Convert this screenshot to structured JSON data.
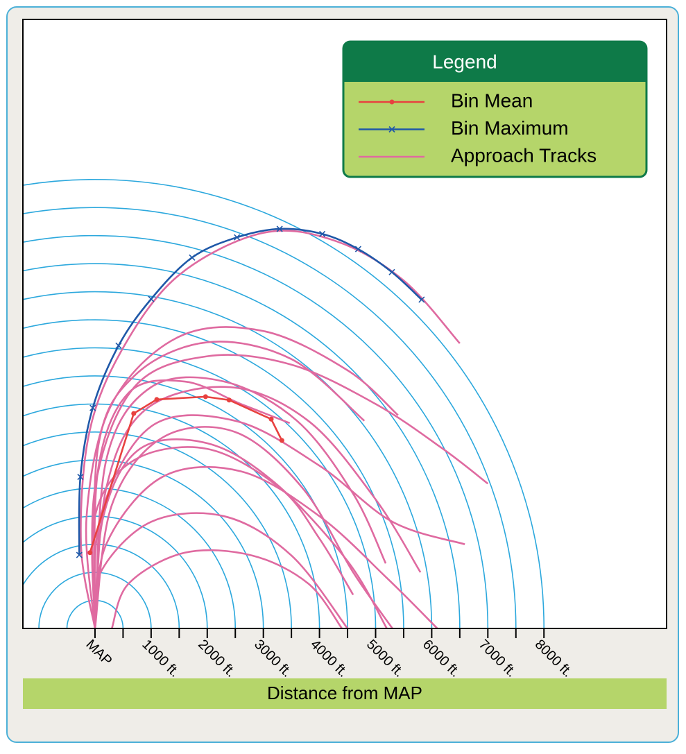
{
  "chart_data": {
    "type": "line",
    "x_label": "Distance from MAP",
    "legend_title": "Legend",
    "xlim": [
      -1285,
      10185
    ],
    "ylim": [
      0,
      10853
    ],
    "xticks": [
      {
        "value": 0,
        "label": "MAP"
      },
      {
        "value": 1000,
        "label": "1000 ft."
      },
      {
        "value": 2000,
        "label": "2000 ft."
      },
      {
        "value": 3000,
        "label": "3000 ft."
      },
      {
        "value": 4000,
        "label": "4000 ft."
      },
      {
        "value": 5000,
        "label": "5000 ft."
      },
      {
        "value": 6000,
        "label": "6000 ft."
      },
      {
        "value": 7000,
        "label": "7000 ft."
      },
      {
        "value": 8000,
        "label": "8000 ft."
      }
    ],
    "minor_xticks": [
      500,
      1500,
      2500,
      3500,
      4500,
      5500,
      6500,
      7500
    ],
    "ring_color": "#2ca8dd",
    "series": [
      {
        "name": "Bin Mean",
        "color": "#e8413f",
        "marker": "dot",
        "smooth": false,
        "x": [
          -90,
          690,
          1100,
          1970,
          2390,
          3140,
          3330
        ],
        "values": [
          1350,
          3830,
          4080,
          4130,
          4070,
          3730,
          3350
        ]
      },
      {
        "name": "Bin Maximum",
        "color": "#1f58a8",
        "marker": "x",
        "smooth": true,
        "x": [
          -280,
          -260,
          -40,
          420,
          1000,
          1730,
          2530,
          3290,
          4050,
          4690,
          5290,
          5820
        ],
        "values": [
          1310,
          2700,
          3930,
          5040,
          5870,
          6610,
          6970,
          7120,
          7030,
          6760,
          6350,
          5860
        ]
      },
      {
        "name": "Approach Tracks",
        "color": "#df6aa0",
        "marker": "none",
        "smooth": true,
        "x": [
          0,
          -250,
          -100,
          500,
          1500,
          3000,
          4300,
          5500,
          6500,
          null,
          0,
          -150,
          300,
          1500,
          3000,
          4500,
          5400,
          null,
          0,
          0,
          700,
          2000,
          3500,
          5000,
          6200,
          7000,
          null,
          0,
          200,
          1000,
          2300,
          3600,
          4600,
          5180,
          null,
          0,
          50,
          600,
          1600,
          2600,
          3470,
          null,
          0,
          150,
          800,
          2000,
          3200,
          4500,
          5200,
          null,
          300,
          600,
          1600,
          2800,
          3800,
          4400,
          null,
          0,
          200,
          1200,
          2600,
          4000,
          5200,
          6100,
          null,
          0,
          100,
          1000,
          2500,
          4000,
          5300,
          6590,
          null,
          0,
          300,
          1200,
          2500,
          3700,
          4600,
          5300,
          null,
          0,
          100,
          1000,
          2300,
          3500,
          4500,
          null,
          0,
          200,
          900,
          2400,
          3800,
          5000,
          5800,
          null,
          0,
          50,
          700,
          2000,
          3500,
          4800,
          null,
          0,
          0,
          700,
          2000,
          3300,
          4000,
          4600
        ],
        "values": [
          0,
          1500,
          3500,
          5000,
          6300,
          7050,
          6900,
          6200,
          5080,
          null,
          0,
          2000,
          4000,
          5200,
          5300,
          4600,
          3800,
          null,
          0,
          2500,
          4300,
          4850,
          4700,
          4000,
          3200,
          2580,
          null,
          0,
          3000,
          4300,
          4400,
          3700,
          2400,
          1160,
          null,
          0,
          2800,
          4200,
          4400,
          4000,
          3660,
          null,
          0,
          2000,
          3200,
          3300,
          2600,
          1200,
          0,
          null,
          0,
          800,
          1350,
          1300,
          800,
          0,
          null,
          0,
          1500,
          2700,
          2800,
          2000,
          900,
          0,
          null,
          0,
          2000,
          3600,
          3700,
          2900,
          1900,
          1500,
          null,
          0,
          2200,
          3400,
          3500,
          2500,
          1000,
          0,
          null,
          0,
          1000,
          1900,
          2000,
          1300,
          0,
          null,
          0,
          2500,
          3900,
          4300,
          3700,
          2300,
          1000,
          null,
          0,
          3200,
          4500,
          5100,
          4800,
          3700,
          null,
          0,
          2000,
          3000,
          3200,
          2500,
          1600,
          600
        ]
      }
    ]
  }
}
